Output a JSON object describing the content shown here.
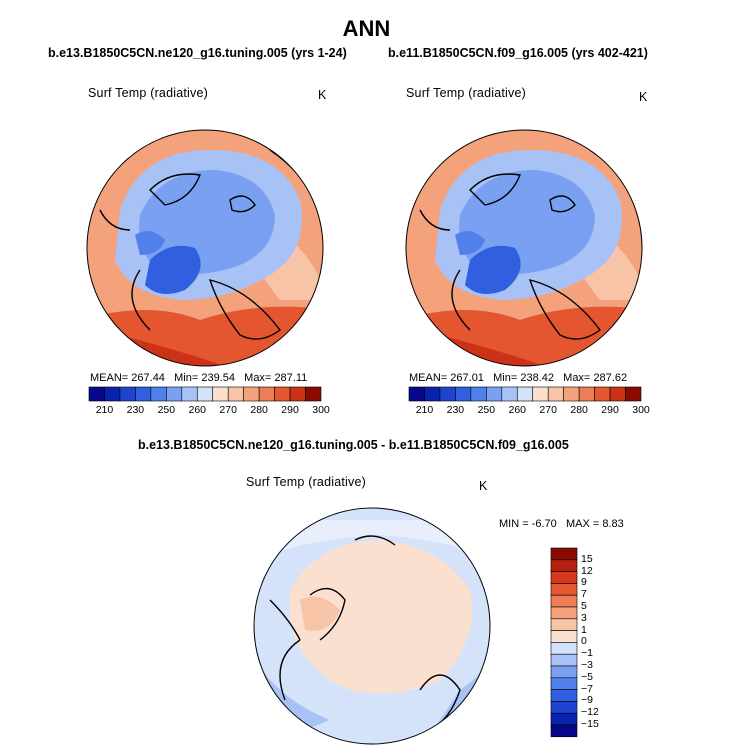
{
  "title": "ANN",
  "panels": [
    {
      "case": "b.e13.B1850C5CN.ne120_g16.tuning.005 (yrs 1-24)",
      "variable": "Surf Temp (radiative)",
      "units": "K",
      "stats": {
        "mean_label": "MEAN=",
        "mean": "267.44",
        "min_label": "Min=",
        "min": "239.54",
        "max_label": "Max=",
        "max": "287.11"
      }
    },
    {
      "case": "b.e11.B1850C5CN.f09_g16.005 (yrs 402-421)",
      "variable": "Surf Temp (radiative)",
      "units": "K",
      "stats": {
        "mean_label": "MEAN=",
        "mean": "267.01",
        "min_label": "Min=",
        "min": "238.42",
        "max_label": "Max=",
        "max": "287.62"
      }
    }
  ],
  "diff_panel": {
    "title": "b.e13.B1850C5CN.ne120_g16.tuning.005 - b.e11.B1850C5CN.f09_g16.005",
    "variable": "Surf Temp (radiative)",
    "units": "K",
    "stats": {
      "min_label": "MIN =",
      "min": "-6.70",
      "max_label": "MAX =",
      "max": "8.83"
    }
  },
  "chart_data": [
    {
      "type": "heatmap",
      "projection": "north-polar-stereographic",
      "title": "b.e13.B1850C5CN.ne120_g16.tuning.005 (yrs 1-24)",
      "variable": "Surf Temp (radiative)",
      "units": "K",
      "mean": 267.44,
      "min": 239.54,
      "max": 287.11,
      "colorbar_levels": [
        210,
        220,
        230,
        240,
        250,
        255,
        260,
        265,
        270,
        275,
        280,
        285,
        290,
        295,
        300
      ],
      "colorbar_tick_labels": [
        "210",
        "230",
        "250",
        "260",
        "270",
        "280",
        "290",
        "300"
      ]
    },
    {
      "type": "heatmap",
      "projection": "north-polar-stereographic",
      "title": "b.e11.B1850C5CN.f09_g16.005 (yrs 402-421)",
      "variable": "Surf Temp (radiative)",
      "units": "K",
      "mean": 267.01,
      "min": 238.42,
      "max": 287.62,
      "colorbar_levels": [
        210,
        220,
        230,
        240,
        250,
        255,
        260,
        265,
        270,
        275,
        280,
        285,
        290,
        295,
        300
      ],
      "colorbar_tick_labels": [
        "210",
        "230",
        "250",
        "260",
        "270",
        "280",
        "290",
        "300"
      ]
    },
    {
      "type": "heatmap",
      "projection": "north-polar-stereographic",
      "title": "b.e13.B1850C5CN.ne120_g16.tuning.005 - b.e11.B1850C5CN.f09_g16.005",
      "variable": "Surf Temp (radiative)",
      "units": "K",
      "min": -6.7,
      "max": 8.83,
      "colorbar_levels": [
        -15,
        -12,
        -9,
        -7,
        -5,
        -3,
        -1,
        0,
        1,
        3,
        5,
        7,
        9,
        12,
        15
      ],
      "colorbar_tick_labels": [
        "15",
        "12",
        "9",
        "7",
        "5",
        "3",
        "1",
        "0",
        "−1",
        "−3",
        "−5",
        "−7",
        "−9",
        "−12",
        "−15"
      ]
    }
  ],
  "colors": {
    "abs_scale": [
      "#08088a",
      "#0a22b0",
      "#1c44d0",
      "#3060e0",
      "#5080ea",
      "#7aa0f2",
      "#a8c2f6",
      "#d4e2fa",
      "#fbe0d0",
      "#f8c4a8",
      "#f4a27c",
      "#ee7c54",
      "#e45630",
      "#cc3218",
      "#8a0a00"
    ],
    "diff_scale": [
      "#8a0a00",
      "#b42010",
      "#d43818",
      "#e45a30",
      "#ee7c54",
      "#f4a27c",
      "#f8c4a8",
      "#fbe0d0",
      "#d4e2fa",
      "#a8c2f6",
      "#7aa0f2",
      "#5080ea",
      "#3060e0",
      "#1c44d0",
      "#0a22b0",
      "#08088a"
    ]
  }
}
